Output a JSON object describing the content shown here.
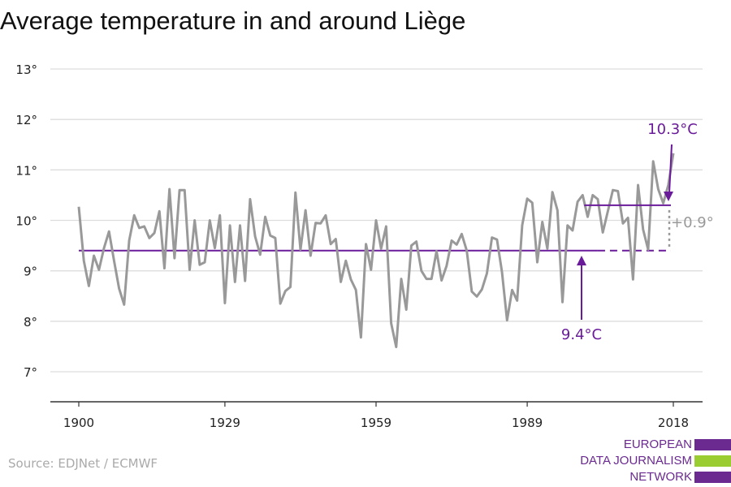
{
  "title": "Average temperature in and around Liège",
  "source": "Source: EDJNet / ECMWF",
  "logo": {
    "lines": [
      "EUROPEAN",
      "DATA JOURNALISM",
      "NETWORK"
    ],
    "bar_colors": [
      "#6a2a8f",
      "#9acd32",
      "#6a2a8f"
    ]
  },
  "colors": {
    "line": "#999999",
    "accent": "#6a1b9a",
    "grid": "#dddddd",
    "axis": "#333333"
  },
  "chart_data": {
    "type": "line",
    "title": "Average temperature in and around Liège",
    "xlabel": "",
    "ylabel": "",
    "xlim": [
      1900,
      2018
    ],
    "ylim": [
      7,
      13
    ],
    "grid": true,
    "x_ticks": [
      1900,
      1929,
      1959,
      1989,
      2018
    ],
    "x_tick_labels": [
      "1900",
      "1929",
      "1959",
      "1989",
      "2018"
    ],
    "y_ticks": [
      7,
      8,
      9,
      10,
      11,
      12,
      13
    ],
    "y_tick_labels": [
      "7°",
      "8°",
      "9°",
      "10°",
      "11°",
      "12°",
      "13°"
    ],
    "x_start": 1900,
    "values": [
      10.27,
      9.2,
      8.7,
      9.3,
      9.02,
      9.45,
      9.78,
      9.2,
      8.65,
      8.33,
      9.6,
      10.1,
      9.85,
      9.88,
      9.65,
      9.75,
      10.18,
      9.05,
      10.62,
      9.25,
      10.6,
      10.6,
      9.02,
      10.0,
      9.12,
      9.17,
      10.0,
      9.45,
      10.1,
      8.36,
      9.9,
      8.78,
      9.9,
      8.8,
      10.42,
      9.68,
      9.32,
      10.07,
      9.7,
      9.65,
      8.35,
      8.6,
      8.68,
      10.55,
      9.42,
      10.2,
      9.3,
      9.95,
      9.94,
      10.1,
      9.53,
      9.63,
      8.78,
      9.2,
      8.83,
      8.62,
      7.68,
      9.53,
      9.02,
      10.0,
      9.44,
      9.88,
      7.96,
      7.49,
      8.84,
      8.23,
      9.5,
      9.58,
      9.0,
      8.84,
      8.84,
      9.39,
      8.81,
      9.1,
      9.6,
      9.52,
      9.73,
      9.4,
      8.59,
      8.49,
      8.63,
      8.95,
      9.66,
      9.62,
      8.97,
      8.02,
      8.62,
      8.41,
      9.9,
      10.43,
      10.35,
      9.17,
      9.97,
      9.44,
      10.56,
      10.2,
      8.38,
      9.9,
      9.8,
      10.37,
      10.5,
      10.07,
      10.5,
      10.42,
      9.76,
      10.18,
      10.6,
      10.58,
      9.94,
      10.05,
      8.83,
      10.7,
      9.82,
      9.42,
      11.17,
      10.62,
      10.34,
      10.7,
      11.33
    ],
    "annotations": {
      "baseline": {
        "value": 9.4,
        "label": "9.4°C",
        "solid_until": 2003
      },
      "recent": {
        "value": 10.3,
        "label": "10.3°C",
        "from": 2000
      },
      "difference": {
        "label": "+0.9°"
      }
    }
  }
}
